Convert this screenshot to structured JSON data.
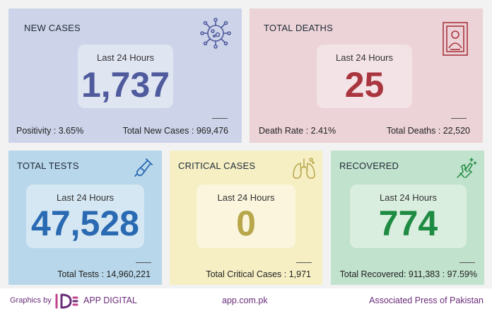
{
  "colors": {
    "new_cases": "#4f5b9c",
    "deaths": "#a9363f",
    "tests": "#2a6ab3",
    "critical": "#b7a64a",
    "recovered": "#1e8b43",
    "brand_purple": "#6a2d7a"
  },
  "new_cases": {
    "title": "NEW CASES",
    "icon": "virus-icon",
    "period": "Last 24 Hours",
    "value": "1,737",
    "left_stat": "Positivity : 3.65%",
    "right_stat": "Total New Cases : 969,476"
  },
  "total_deaths": {
    "title": "TOTAL DEATHS",
    "icon": "portrait-frame-icon",
    "period": "Last 24 Hours",
    "value": "25",
    "left_stat": "Death Rate : 2.41%",
    "right_stat": "Total Deaths : 22,520"
  },
  "total_tests": {
    "title": "TOTAL TESTS",
    "icon": "test-tube-icon",
    "period": "Last 24 Hours",
    "value": "47,528",
    "stat": "Total Tests : 14,960,221"
  },
  "critical_cases": {
    "title": "CRITICAL CASES",
    "icon": "lungs-icon",
    "period": "Last 24 Hours",
    "value": "0",
    "stat": "Total Critical Cases : 1,971"
  },
  "recovered": {
    "title": "RECOVERED",
    "icon": "bandaged-hand-icon",
    "period": "Last 24 Hours",
    "value": "774",
    "stat": "Total Recovered: 911,383 : 97.59%"
  },
  "footer": {
    "graphics_by": "Graphics by",
    "brand": "APP DIGITAL",
    "site": "app.com.pk",
    "agency": "Associated Press of Pakistan"
  }
}
